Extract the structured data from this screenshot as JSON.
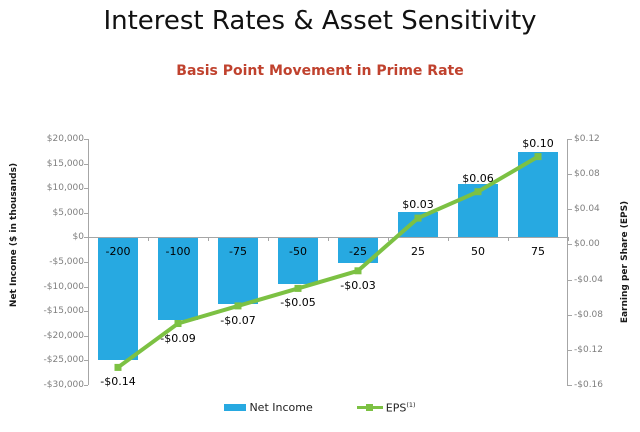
{
  "title": "Interest Rates & Asset Sensitivity",
  "subtitle": "Basis Point Movement in Prime Rate",
  "colors": {
    "background": "#FFFFFF",
    "bar_blue": "#27A9E1",
    "line_green": "#7CC143",
    "subtitle_red": "#C0422E",
    "tick_label_gray": "#7F7F7F",
    "axis_line_gray": "#A6A6A6",
    "label_black": "#000000"
  },
  "left_axis": {
    "title": "Net Income ($ in thousands)",
    "tick_labels": [
      "$20,000",
      "$15,000",
      "$10,000",
      "$5,000",
      "$0",
      "-$5,000",
      "-$10,000",
      "-$15,000",
      "-$20,000",
      "-$25,000",
      "-$30,000"
    ]
  },
  "right_axis": {
    "title": "Earning per Share (EPS)",
    "tick_labels": [
      "$0.12",
      "$0.08",
      "$0.04",
      "$0.00",
      "-$0.04",
      "-$0.08",
      "-$0.12",
      "-$0.16"
    ]
  },
  "legend": {
    "position": "bottom",
    "items": [
      {
        "label": "Net Income",
        "marker": "bar-swatch-icon"
      },
      {
        "label": "EPS",
        "sup": "(1)",
        "marker": "line-marker-icon"
      }
    ]
  },
  "chart_data": {
    "type": "combo",
    "title": "Basis Point Movement in Prime Rate",
    "categories": [
      "-200",
      "-100",
      "-75",
      "-50",
      "-25",
      "25",
      "50",
      "75"
    ],
    "series": [
      {
        "name": "Net Income",
        "type": "bar",
        "axis": "left",
        "values": [
          -24800,
          -16500,
          -13300,
          -9300,
          -5000,
          5200,
          10800,
          17400
        ]
      },
      {
        "name": "EPS",
        "type": "line",
        "axis": "right",
        "values": [
          -0.14,
          -0.09,
          -0.07,
          -0.05,
          -0.03,
          0.03,
          0.06,
          0.1
        ],
        "point_labels": [
          "-$0.14",
          "-$0.09",
          "-$0.07",
          "-$0.05",
          "-$0.03",
          "$0.03",
          "$0.06",
          "$0.10"
        ]
      }
    ],
    "left_axis_range": [
      -30000,
      20000
    ],
    "left_tick_step": 5000,
    "right_axis_range": [
      -0.16,
      0.12
    ],
    "right_tick_step": 0.04,
    "xlabel": "",
    "ylabel_left": "Net Income ($ in thousands)",
    "ylabel_right": "Earning per Share (EPS)",
    "grid": false,
    "legend_position": "bottom"
  }
}
